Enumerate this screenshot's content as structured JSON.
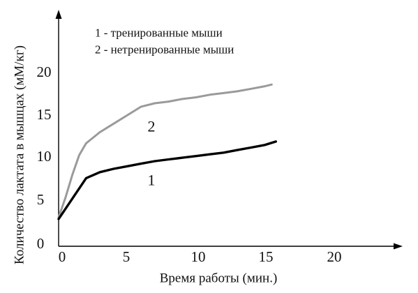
{
  "chart_data": {
    "type": "line",
    "xlabel": "Время работы (мин.)",
    "ylabel": "Количество лактата в мышцах (мМ/кг)",
    "xlim": [
      0,
      25
    ],
    "ylim": [
      0,
      25
    ],
    "x_ticks": [
      "0",
      "5",
      "10",
      "15",
      "20"
    ],
    "y_ticks": [
      "0",
      "5",
      "10",
      "15",
      "20"
    ],
    "grid": false,
    "legend": [
      "1 - тренированные мыши",
      "2 - нетренированные мыши"
    ],
    "legend_position": "top",
    "series": [
      {
        "label": "1",
        "color": "#000000",
        "x": [
          0,
          1,
          2,
          3,
          4,
          5,
          6,
          7,
          8,
          9,
          10,
          11,
          12,
          13,
          14,
          15,
          15.8
        ],
        "y": [
          2.3,
          4.7,
          7.1,
          7.8,
          8.2,
          8.5,
          8.8,
          9.1,
          9.3,
          9.5,
          9.7,
          9.9,
          10.1,
          10.4,
          10.7,
          11.0,
          11.4
        ]
      },
      {
        "label": "2",
        "color": "#9a9a9a",
        "x": [
          0,
          0.5,
          1,
          1.5,
          2,
          3,
          4,
          5,
          6,
          7,
          8,
          9,
          10,
          11,
          12,
          13,
          14,
          15,
          15.5
        ],
        "y": [
          2.5,
          4.8,
          7.5,
          9.8,
          11.2,
          12.5,
          13.5,
          14.5,
          15.5,
          15.9,
          16.1,
          16.4,
          16.6,
          16.9,
          17.1,
          17.3,
          17.6,
          17.9,
          18.1
        ]
      }
    ]
  }
}
